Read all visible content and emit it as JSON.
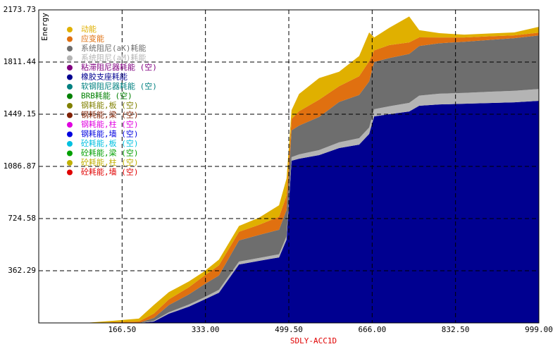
{
  "chart_data": {
    "type": "stacked_area",
    "x_label": "SDLY-ACC1D",
    "y_label": "Energy",
    "x": [
      0,
      100,
      150,
      200,
      230,
      260,
      300,
      330,
      360,
      400,
      440,
      480,
      495,
      505,
      520,
      560,
      600,
      640,
      660,
      670,
      700,
      740,
      760,
      800,
      850,
      900,
      950,
      999
    ],
    "xlim": [
      0,
      999
    ],
    "xticks": [
      {
        "value": 166.5,
        "label": "166.50"
      },
      {
        "value": 333,
        "label": "333.00"
      },
      {
        "value": 499.5,
        "label": "499.50"
      },
      {
        "value": 666,
        "label": "666.00"
      },
      {
        "value": 832.5,
        "label": "832.50"
      },
      {
        "value": 999,
        "label": "999.00"
      }
    ],
    "ylim": [
      0,
      2173.73
    ],
    "yticks": [
      362.29,
      724.58,
      1086.87,
      1449.15,
      1811.44,
      2173.73
    ],
    "grid": true,
    "series": [
      {
        "name": "动能",
        "color": "#e0b000",
        "values": [
          0,
          2,
          10,
          20,
          60,
          50,
          40,
          30,
          40,
          40,
          50,
          80,
          120,
          60,
          120,
          150,
          100,
          140,
          200,
          90,
          120,
          180,
          50,
          30,
          20,
          20,
          20,
          40
        ]
      },
      {
        "name": "应变能",
        "color": "#e07010",
        "values": [
          0,
          0,
          5,
          10,
          30,
          40,
          50,
          60,
          70,
          60,
          70,
          90,
          100,
          80,
          100,
          120,
          110,
          130,
          140,
          80,
          90,
          80,
          60,
          40,
          30,
          25,
          20,
          20
        ]
      },
      {
        "name": "系统阻尼(aK)耗能",
        "color": "#6e6e6e",
        "values": [
          0,
          0,
          0,
          0,
          20,
          50,
          70,
          90,
          100,
          147,
          160,
          170,
          180,
          186,
          200,
          230,
          280,
          300,
          320,
          328,
          335,
          340,
          345,
          350,
          355,
          360,
          365,
          372
        ]
      },
      {
        "name": "系统阻尼(aM)耗能",
        "color": "#b4b4b4",
        "values": [
          0,
          0,
          0,
          0,
          5,
          10,
          15,
          15,
          20,
          20,
          20,
          22,
          25,
          25,
          30,
          35,
          40,
          45,
          45,
          50,
          55,
          60,
          70,
          75,
          75,
          78,
          80,
          82
        ]
      },
      {
        "name": "粘滞阻尼器耗能 (空)",
        "color": "#800080"
      },
      {
        "name": "橡胶支座耗能",
        "color": "#000090",
        "values": [
          0,
          0,
          0,
          0,
          10,
          64,
          113,
          161,
          210,
          406,
          431,
          455,
          578,
          1126,
          1140,
          1165,
          1214,
          1238,
          1312,
          1434,
          1449,
          1468,
          1508,
          1517,
          1522,
          1527,
          1532,
          1542
        ]
      },
      {
        "name": "软钢阻尼器耗能 (空)",
        "color": "#008080"
      },
      {
        "name": "BRB耗能 (空)",
        "color": "#008000"
      },
      {
        "name": "钢耗能,板 (空)",
        "color": "#808000"
      },
      {
        "name": "钢耗能,梁 (空)",
        "color": "#802000"
      },
      {
        "name": "钢耗能,柱 (空)",
        "color": "#e000e0"
      },
      {
        "name": "钢耗能,墙 (空)",
        "color": "#0000e0"
      },
      {
        "name": "砼耗能,板 (空)",
        "color": "#00c0e0"
      },
      {
        "name": "砼耗能,梁 (空)",
        "color": "#00a000"
      },
      {
        "name": "砼耗能,柱 (空)",
        "color": "#c0b000"
      },
      {
        "name": "砼耗能,墙 (空)",
        "color": "#e00000"
      }
    ]
  }
}
